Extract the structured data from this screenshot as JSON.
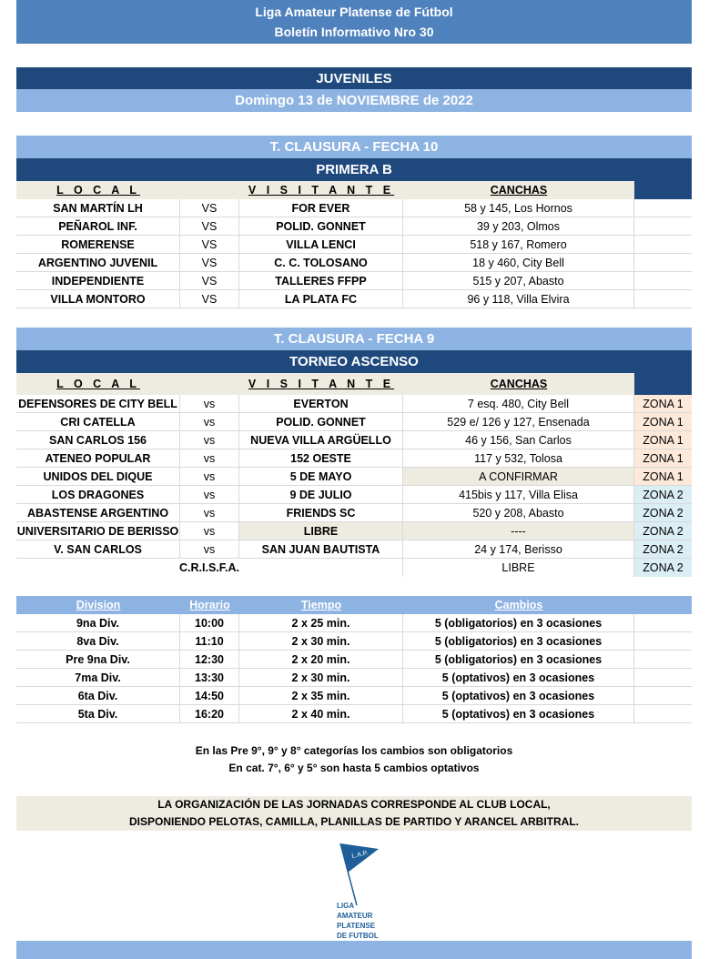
{
  "header": {
    "title": "Liga Amateur Platense de Fútbol",
    "subtitle": "Boletín Informativo Nro 30"
  },
  "category": "JUVENILES",
  "date": "Domingo 13 de NOVIEMBRE de 2022",
  "columns": {
    "local": "L O C A L",
    "visitante": "V I S I T A N T E",
    "canchas": "CANCHAS"
  },
  "primera_b": {
    "tournament": "T. CLAUSURA - FECHA 10",
    "division": "PRIMERA B",
    "matches": [
      [
        "SAN MARTÍN LH",
        "VS",
        "FOR EVER",
        "58 y 145, Los Hornos"
      ],
      [
        "PEÑAROL INF.",
        "VS",
        "POLID. GONNET",
        "39 y 203, Olmos"
      ],
      [
        "ROMERENSE",
        "VS",
        "VILLA LENCI",
        "518 y 167, Romero"
      ],
      [
        "ARGENTINO JUVENIL",
        "VS",
        "C. C. TOLOSANO",
        "18 y 460, City Bell"
      ],
      [
        "INDEPENDIENTE",
        "VS",
        "TALLERES FFPP",
        "515 y 207, Abasto"
      ],
      [
        "VILLA MONTORO",
        "VS",
        "LA PLATA FC",
        "96 y 118, Villa Elvira"
      ]
    ]
  },
  "ascenso": {
    "tournament": "T. CLAUSURA - FECHA 9",
    "division": "TORNEO ASCENSO",
    "matches": [
      [
        "DEFENSORES DE CITY BELL",
        "vs",
        "EVERTON",
        "7 esq. 480, City Bell",
        "ZONA 1"
      ],
      [
        "CRI CATELLA",
        "vs",
        "POLID. GONNET",
        "529 e/ 126 y 127, Ensenada",
        "ZONA 1"
      ],
      [
        "SAN CARLOS 156",
        "vs",
        "NUEVA VILLA ARGÜELLO",
        "46 y 156, San Carlos",
        "ZONA 1"
      ],
      [
        "ATENEO POPULAR",
        "vs",
        "152 OESTE",
        "117 y 532, Tolosa",
        "ZONA 1"
      ],
      [
        "UNIDOS DEL DIQUE",
        "vs",
        "5 DE MAYO",
        "A CONFIRMAR",
        "ZONA 1"
      ],
      [
        "LOS DRAGONES",
        "vs",
        "9 DE JULIO",
        "415bis y 117, Villa Elisa",
        "ZONA 2"
      ],
      [
        "ABASTENSE ARGENTINO",
        "vs",
        "FRIENDS SC",
        "520 y 208, Abasto",
        "ZONA 2"
      ],
      [
        "UNIVERSITARIO DE BERISSO",
        "vs",
        "LIBRE",
        "----",
        "ZONA 2"
      ],
      [
        "V. SAN CARLOS",
        "vs",
        "SAN JUAN BAUTISTA",
        "24 y 174, Berisso",
        "ZONA 2"
      ]
    ],
    "free": {
      "team": "C.R.I.S.F.A.",
      "cancha": "LIBRE",
      "zona": "ZONA 2"
    }
  },
  "schedule": {
    "headers": [
      "Division",
      "Horario",
      "Tiempo",
      "Cambios"
    ],
    "rows": [
      [
        "9na Div.",
        "10:00",
        "2 x 25 min.",
        "5 (obligatorios) en 3 ocasiones"
      ],
      [
        "8va Div.",
        "11:10",
        "2 x 30 min.",
        "5 (obligatorios) en 3 ocasiones"
      ],
      [
        "Pre 9na Div.",
        "12:30",
        "2 x 20 min.",
        "5 (obligatorios) en 3 ocasiones"
      ],
      [
        "7ma Div.",
        "13:30",
        "2 x 30 min.",
        "5 (optativos) en 3 ocasiones"
      ],
      [
        "6ta Div.",
        "14:50",
        "2 x 35 min.",
        "5 (optativos) en 3 ocasiones"
      ],
      [
        "5ta Div.",
        "16:20",
        "2 x 40 min.",
        "5 (optativos) en 3 ocasiones"
      ]
    ]
  },
  "notes": [
    "En las Pre 9°, 9° y 8° categorías los cambios son obligatorios",
    "En cat. 7°, 6° y 5° son hasta 5 cambios optativos"
  ],
  "organization": [
    "LA ORGANIZACIÓN DE LAS JORNADAS CORRESPONDE AL CLUB LOCAL,",
    "DISPONIENDO PELOTAS, CAMILLA, PLANILLAS DE PARTIDO Y ARANCEL ARBITRAL."
  ],
  "logo": {
    "flag": "L.A.P.",
    "text": [
      "LIGA",
      "AMATEUR",
      "PLATENSE",
      "DE FUTBOL"
    ],
    "color": "#1f5f99"
  },
  "colors": {
    "navy": "#1f497d",
    "light_blue": "#8db3e2",
    "header_blue": "#4f81bd",
    "beige": "#eeece1",
    "zona1": "#fde9d9",
    "zona2": "#daeef3"
  }
}
